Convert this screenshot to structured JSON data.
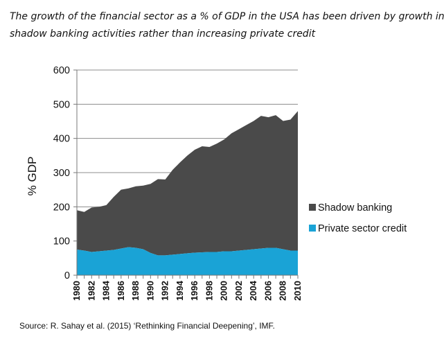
{
  "title_line1": "The growth of the financial sector as a % of GDP in the USA has been driven by growth in",
  "title_line2": "shadow banking activities rather than increasing private credit",
  "source": "Source: R. Sahay et al. (2015) ‘Rethinking Financial Deepening’, IMF.",
  "colors": {
    "shadow": "#4a4a4a",
    "private": "#1aa3d6",
    "grid": "#8c8c8c",
    "axis": "#777777"
  },
  "chart_data": {
    "type": "area",
    "stacked": true,
    "ylabel": "% GDP",
    "ylim": [
      0,
      600
    ],
    "yticks": [
      0,
      100,
      200,
      300,
      400,
      500,
      600
    ],
    "grid": true,
    "legend_position": "right",
    "x": [
      1980,
      1981,
      1982,
      1983,
      1984,
      1985,
      1986,
      1987,
      1988,
      1989,
      1990,
      1991,
      1992,
      1993,
      1994,
      1995,
      1996,
      1997,
      1998,
      1999,
      2000,
      2001,
      2002,
      2003,
      2004,
      2005,
      2006,
      2007,
      2008,
      2009,
      2010
    ],
    "xticks": [
      "1980",
      "1982",
      "1984",
      "1986",
      "1988",
      "1990",
      "1992",
      "1994",
      "1996",
      "1998",
      "2000",
      "2002",
      "2004",
      "2006",
      "2008",
      "2010"
    ],
    "series": [
      {
        "name": "Private sector credit",
        "color": "#1aa3d6",
        "values": [
          75,
          72,
          68,
          70,
          72,
          74,
          78,
          82,
          80,
          76,
          65,
          58,
          58,
          60,
          62,
          64,
          66,
          67,
          68,
          68,
          70,
          70,
          72,
          74,
          76,
          78,
          80,
          80,
          76,
          72,
          72
        ]
      },
      {
        "name": "Shadow banking",
        "color": "#4a4a4a",
        "values": [
          115,
          113,
          130,
          130,
          133,
          155,
          172,
          172,
          180,
          186,
          202,
          223,
          222,
          248,
          268,
          286,
          301,
          310,
          307,
          317,
          327,
          345,
          355,
          365,
          375,
          388,
          382,
          388,
          375,
          383,
          408
        ]
      }
    ],
    "totals": [
      190,
      185,
      198,
      200,
      205,
      229,
      250,
      254,
      260,
      262,
      267,
      281,
      280,
      308,
      330,
      350,
      367,
      377,
      375,
      385,
      397,
      415,
      427,
      439,
      451,
      466,
      462,
      468,
      451,
      455,
      480
    ]
  }
}
